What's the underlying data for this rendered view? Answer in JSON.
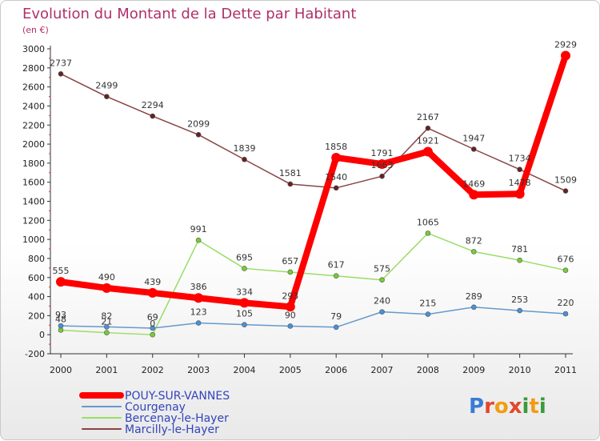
{
  "chart_data": {
    "type": "line",
    "title": "Evolution du Montant de la Dette par Habitant",
    "subtitle": "(en €)",
    "x": [
      "2000",
      "2001",
      "2002",
      "2003",
      "2004",
      "2005",
      "2006",
      "2007",
      "2008",
      "2009",
      "2010",
      "2011"
    ],
    "ylim": [
      -200,
      3000
    ],
    "yticks": [
      -200,
      0,
      200,
      400,
      600,
      800,
      1000,
      1200,
      1400,
      1600,
      1800,
      2000,
      2200,
      2400,
      2600,
      2800,
      3000
    ],
    "grid": false,
    "legend_position": "bottom-left",
    "series": [
      {
        "name": "POUY-SUR-VANNES",
        "color": "#ff0000",
        "point_color": "#ff0000",
        "width": 8,
        "radius": 6,
        "values": [
          555,
          490,
          439,
          386,
          334,
          293,
          1858,
          1791,
          1921,
          1469,
          1478,
          2929
        ],
        "labels": [
          "555",
          "490",
          "439",
          "386",
          "334",
          "293",
          "1858",
          "1791",
          "1921",
          "1469",
          "1478",
          "2929"
        ]
      },
      {
        "name": "Courgenay",
        "color": "#6699cc",
        "point_color": "#4a90d9",
        "width": 1.5,
        "radius": 3,
        "values": [
          93,
          82,
          69,
          123,
          105,
          90,
          79,
          240,
          215,
          289,
          253,
          220
        ],
        "labels": [
          "93",
          "82",
          "69",
          "123",
          "105",
          "90",
          "79",
          "240",
          "215",
          "289",
          "253",
          "220"
        ]
      },
      {
        "name": "Bercenay-le-Hayer",
        "color": "#99dd66",
        "point_color": "#77cc33",
        "width": 1.5,
        "radius": 3,
        "values": [
          48,
          21,
          0,
          991,
          695,
          657,
          617,
          575,
          1065,
          872,
          781,
          676
        ],
        "labels": [
          "48",
          "21",
          "0",
          "991",
          "695",
          "657",
          "617",
          "575",
          "1065",
          "872",
          "781",
          "676"
        ]
      },
      {
        "name": "Marcilly-le-Hayer",
        "color": "#884444",
        "point_color": "#662222",
        "width": 1.5,
        "radius": 3,
        "values": [
          2737,
          2499,
          2294,
          2099,
          1839,
          1581,
          1540,
          1663,
          2167,
          1947,
          1734,
          1509
        ],
        "labels": [
          "2737",
          "2499",
          "2294",
          "2099",
          "1839",
          "1581",
          "1540",
          "1663",
          "2167",
          "1947",
          "1734",
          "1509"
        ]
      }
    ]
  },
  "logo": {
    "text": "Proxiti",
    "letters": [
      "P",
      "r",
      "o",
      "x",
      "i",
      "t",
      "i"
    ],
    "colors": [
      "#3a7bd5",
      "#e2482c",
      "#f39c12",
      "#e2482c",
      "#3a9a3a",
      "#f39c12",
      "#3a9a3a"
    ]
  }
}
